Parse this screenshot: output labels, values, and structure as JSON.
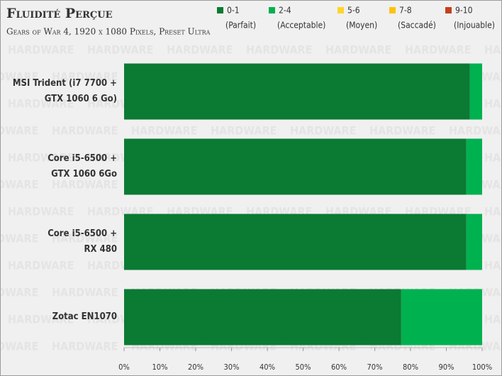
{
  "chart_data": {
    "type": "stacked_bar_horizontal",
    "title": "Fluidité Perçue",
    "subtitle": "Gears of War 4, 1920 x 1080 Pixels, Preset Ultra",
    "watermark": "HARDWARE",
    "categories": [
      "MSI Trident (i7 7700 +\nGTX 1060 6 Go)",
      "Core i5-6500 +\nGTX 1060 6Go",
      "Core i5-6500 +\nRX 480",
      "Zotac EN1070"
    ],
    "series": [
      {
        "name": "0-1",
        "description": "(Parfait)",
        "color": "#0b7a33",
        "values": [
          96.6,
          95.6,
          95.6,
          77.4
        ]
      },
      {
        "name": "2-4",
        "description": "(Acceptable)",
        "color": "#00b14f",
        "values": [
          3.4,
          4.4,
          4.4,
          22.6
        ]
      },
      {
        "name": "5-6",
        "description": "(Moyen)",
        "color": "#ffd52a",
        "values": [
          0,
          0,
          0,
          0
        ]
      },
      {
        "name": "7-8",
        "description": "(Saccadé)",
        "color": "#ffc20e",
        "values": [
          0,
          0,
          0,
          0
        ]
      },
      {
        "name": "9-10",
        "description": "(Injouable)",
        "color": "#c4401c",
        "values": [
          0,
          0,
          0,
          0
        ]
      }
    ],
    "xlim": [
      0,
      100
    ],
    "xticks": [
      {
        "value": 0,
        "label": "0%"
      },
      {
        "value": 10,
        "label": "10%"
      },
      {
        "value": 20,
        "label": "20%"
      },
      {
        "value": 30,
        "label": "30%"
      },
      {
        "value": 40,
        "label": "40%"
      },
      {
        "value": 50,
        "label": "50%"
      },
      {
        "value": 60,
        "label": "60%"
      },
      {
        "value": 70,
        "label": "70%"
      },
      {
        "value": 80,
        "label": "80%"
      },
      {
        "value": 90,
        "label": "90%"
      },
      {
        "value": 100,
        "label": "100%"
      }
    ],
    "grid": false,
    "legend": "top-right"
  }
}
